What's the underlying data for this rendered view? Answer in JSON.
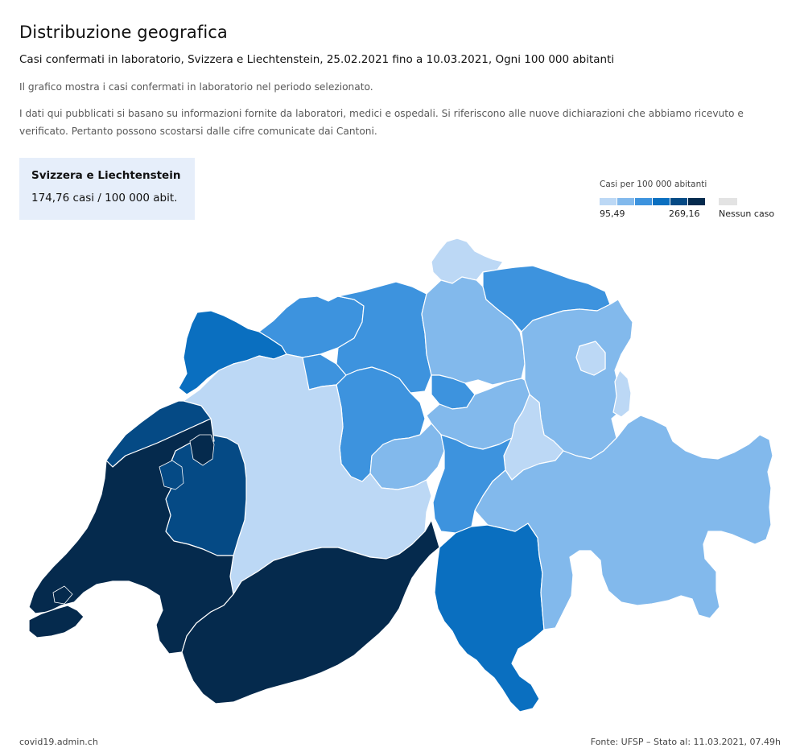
{
  "header": {
    "title": "Distribuzione geografica",
    "subtitle": "Casi confermati in laboratorio, Svizzera e Liechtenstein, 25.02.2021 fino a 10.03.2021, Ogni 100 000 abitanti",
    "description_1": "Il grafico mostra i casi confermati in laboratorio nel periodo selezionato.",
    "description_2": "I dati qui pubblicati si basano su informazioni fornite da laboratori, medici e ospedali. Si riferiscono alle nuove dichiarazioni che abbiamo ricevuto e verificato. Pertanto possono scostarsi dalle cifre comunicate dai Cantoni."
  },
  "infobox": {
    "region": "Svizzera e Liechtenstein",
    "value": "174,76 casi  /  100 000 abit."
  },
  "legend": {
    "title": "Casi per 100 000 abitanti",
    "min": "95,49",
    "max": "269,16",
    "no_case": "Nessun caso",
    "colors": [
      "#bcd8f5",
      "#82b9ec",
      "#3d93de",
      "#0a6fc0",
      "#054a85",
      "#052a4d"
    ],
    "no_case_color": "#e3e3e3"
  },
  "map": {
    "colors": {
      "c1": "#bcd8f5",
      "c2": "#82b9ec",
      "c3": "#3d93de",
      "c4": "#0a6fc0",
      "c5": "#054a85",
      "c6": "#052a4d"
    }
  },
  "footer": {
    "source_site": "covid19.admin.ch",
    "source_note": "Fonte: UFSP – Stato al: 11.03.2021, 07.49h"
  }
}
